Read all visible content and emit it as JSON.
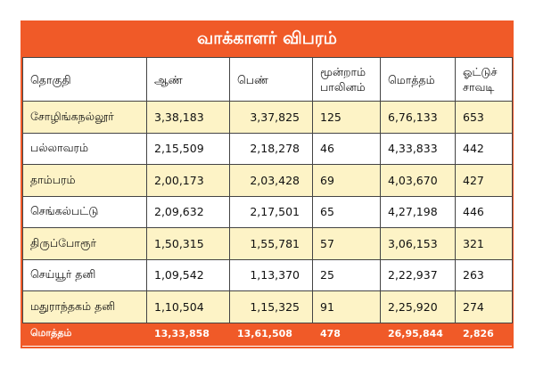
{
  "title": "வாக்காளர் விபரம்",
  "headers": {
    "constituency": "தொகுதி",
    "male": "ஆண்",
    "female": "பெண்",
    "third_1": "மூன்றாம்",
    "third_2": "பாலினம்",
    "total": "மொத்தம்",
    "booth_1": "ஓட்டுச்",
    "booth_2": "சாவடி"
  },
  "rows": [
    {
      "name": "சோழிங்கநல்லூர்",
      "male": "3,38,183",
      "female": "3,37,825",
      "third": "125",
      "total": "6,76,133",
      "booths": "653"
    },
    {
      "name": "பல்லாவரம்",
      "male": "2,15,509",
      "female": "2,18,278",
      "third": "46",
      "total": "4,33,833",
      "booths": "442"
    },
    {
      "name": "தாம்பரம்",
      "male": "2,00,173",
      "female": "2,03,428",
      "third": "69",
      "total": "4,03,670",
      "booths": "427"
    },
    {
      "name": "செங்கல்பட்டு",
      "male": "2,09,632",
      "female": "2,17,501",
      "third": "65",
      "total": "4,27,198",
      "booths": "446"
    },
    {
      "name": "திருப்போரூர்",
      "male": "1,50,315",
      "female": "1,55,781",
      "third": "57",
      "total": "3,06,153",
      "booths": "321"
    },
    {
      "name": "செய்யூர் தனி",
      "male": "1,09,542",
      "female": "1,13,370",
      "third": "25",
      "total": "2,22,937",
      "booths": "263"
    },
    {
      "name": "மதுராந்தகம் தனி",
      "male": "1,10,504",
      "female": "1,15,325",
      "third": "91",
      "total": "2,25,920",
      "booths": "274"
    }
  ],
  "totals": {
    "label": "மொத்தம்",
    "male": "13,33,858",
    "female": "13,61,508",
    "third": "478",
    "total": "26,95,844",
    "booths": "2,826"
  },
  "colors": {
    "accent": "#f05a28",
    "stripe": "#fdf3c6"
  }
}
